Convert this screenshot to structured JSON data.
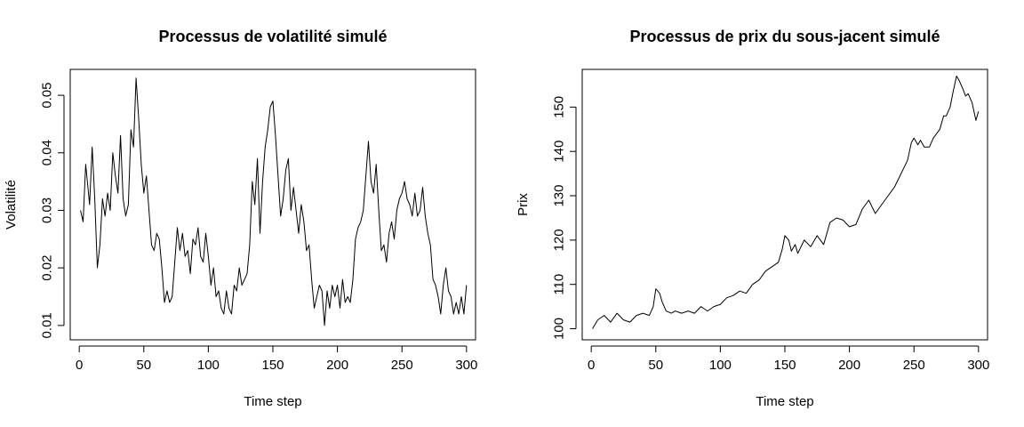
{
  "chart_data": [
    {
      "type": "line",
      "title": "Processus de volatilité simulé",
      "xlabel": "Time step",
      "ylabel": "Volatilité",
      "xlim": [
        -7,
        307
      ],
      "ylim": [
        0.0075,
        0.0545
      ],
      "xticks": [
        0,
        50,
        100,
        150,
        200,
        250,
        300
      ],
      "xtick_labels": [
        "0",
        "50",
        "100",
        "150",
        "200",
        "250",
        "300"
      ],
      "yticks": [
        0.01,
        0.02,
        0.03,
        0.04,
        0.05
      ],
      "ytick_labels": [
        "0.01",
        "0.02",
        "0.03",
        "0.04",
        "0.05"
      ],
      "grid": false,
      "legend": "none",
      "series": [
        {
          "x": [
            1,
            3,
            5,
            8,
            10,
            12,
            14,
            16,
            18,
            20,
            22,
            24,
            26,
            28,
            30,
            32,
            34,
            36,
            38,
            40,
            42,
            44,
            46,
            48,
            50,
            52,
            54,
            56,
            58,
            60,
            62,
            64,
            66,
            68,
            70,
            72,
            74,
            76,
            78,
            80,
            82,
            84,
            86,
            88,
            90,
            92,
            94,
            96,
            98,
            100,
            102,
            104,
            106,
            108,
            110,
            112,
            114,
            116,
            118,
            120,
            122,
            124,
            126,
            128,
            130,
            132,
            134,
            136,
            138,
            140,
            142,
            144,
            146,
            148,
            150,
            152,
            154,
            156,
            158,
            160,
            162,
            164,
            166,
            168,
            170,
            172,
            174,
            176,
            178,
            180,
            182,
            184,
            186,
            188,
            190,
            192,
            194,
            196,
            198,
            200,
            202,
            204,
            206,
            208,
            210,
            212,
            214,
            216,
            218,
            220,
            222,
            224,
            226,
            228,
            230,
            232,
            234,
            236,
            238,
            240,
            242,
            244,
            246,
            248,
            250,
            252,
            254,
            256,
            258,
            260,
            262,
            264,
            266,
            268,
            270,
            272,
            274,
            276,
            278,
            280,
            282,
            284,
            286,
            288,
            290,
            292,
            294,
            296,
            298,
            300
          ],
          "values": [
            0.03,
            0.028,
            0.038,
            0.031,
            0.041,
            0.032,
            0.02,
            0.024,
            0.032,
            0.029,
            0.033,
            0.03,
            0.04,
            0.036,
            0.033,
            0.043,
            0.032,
            0.029,
            0.031,
            0.044,
            0.041,
            0.053,
            0.046,
            0.038,
            0.033,
            0.036,
            0.03,
            0.024,
            0.023,
            0.026,
            0.025,
            0.02,
            0.014,
            0.016,
            0.014,
            0.015,
            0.021,
            0.027,
            0.023,
            0.026,
            0.022,
            0.023,
            0.019,
            0.025,
            0.024,
            0.027,
            0.022,
            0.021,
            0.026,
            0.022,
            0.017,
            0.02,
            0.015,
            0.016,
            0.013,
            0.012,
            0.016,
            0.013,
            0.012,
            0.017,
            0.016,
            0.02,
            0.017,
            0.018,
            0.019,
            0.024,
            0.035,
            0.031,
            0.039,
            0.026,
            0.035,
            0.041,
            0.044,
            0.048,
            0.049,
            0.043,
            0.036,
            0.029,
            0.032,
            0.037,
            0.039,
            0.03,
            0.034,
            0.03,
            0.026,
            0.031,
            0.028,
            0.023,
            0.024,
            0.018,
            0.013,
            0.015,
            0.017,
            0.016,
            0.01,
            0.016,
            0.013,
            0.017,
            0.015,
            0.017,
            0.013,
            0.018,
            0.014,
            0.015,
            0.014,
            0.018,
            0.025,
            0.027,
            0.028,
            0.03,
            0.036,
            0.042,
            0.035,
            0.033,
            0.038,
            0.03,
            0.023,
            0.024,
            0.021,
            0.026,
            0.028,
            0.025,
            0.03,
            0.032,
            0.033,
            0.035,
            0.032,
            0.031,
            0.029,
            0.033,
            0.029,
            0.03,
            0.034,
            0.029,
            0.026,
            0.024,
            0.018,
            0.017,
            0.015,
            0.012,
            0.017,
            0.02,
            0.016,
            0.015,
            0.012,
            0.014,
            0.012,
            0.015,
            0.012,
            0.017
          ]
        }
      ]
    },
    {
      "type": "line",
      "title": "Processus de prix du sous-jacent simulé",
      "xlabel": "Time step",
      "ylabel": "Prix",
      "xlim": [
        -7,
        307
      ],
      "ylim": [
        97.5,
        158.5
      ],
      "xticks": [
        0,
        50,
        100,
        150,
        200,
        250,
        300
      ],
      "xtick_labels": [
        "0",
        "50",
        "100",
        "150",
        "200",
        "250",
        "300"
      ],
      "yticks": [
        100,
        110,
        120,
        130,
        140,
        150
      ],
      "ytick_labels": [
        "100",
        "110",
        "120",
        "130",
        "140",
        "150"
      ],
      "grid": false,
      "legend": "none",
      "series": [
        {
          "x": [
            1,
            5,
            10,
            15,
            20,
            25,
            30,
            35,
            40,
            45,
            48,
            50,
            53,
            55,
            58,
            62,
            65,
            70,
            75,
            80,
            85,
            90,
            95,
            100,
            105,
            110,
            115,
            120,
            125,
            130,
            135,
            140,
            145,
            148,
            150,
            153,
            155,
            158,
            160,
            165,
            170,
            175,
            180,
            185,
            190,
            195,
            200,
            205,
            210,
            215,
            220,
            225,
            230,
            235,
            240,
            245,
            248,
            250,
            253,
            255,
            258,
            262,
            265,
            270,
            273,
            275,
            278,
            280,
            283,
            285,
            288,
            290,
            292,
            295,
            298,
            300
          ],
          "values": [
            100,
            102,
            103,
            101.5,
            103.5,
            102,
            101.5,
            103,
            103.5,
            103,
            105,
            109,
            108,
            106,
            104,
            103.5,
            104,
            103.5,
            104,
            103.5,
            105,
            104,
            105,
            105.5,
            107,
            107.5,
            108.5,
            108,
            110,
            111,
            113,
            114,
            115,
            118,
            121,
            120,
            117.5,
            119,
            117,
            120,
            118.5,
            121,
            119,
            124,
            125,
            124.5,
            123,
            123.5,
            127,
            129,
            126,
            128,
            130,
            132,
            135,
            138,
            142,
            143,
            141.5,
            142.5,
            141,
            141,
            143,
            145,
            148,
            148,
            150,
            153,
            157,
            156,
            154,
            152.5,
            153,
            151,
            147,
            149
          ]
        }
      ]
    }
  ]
}
